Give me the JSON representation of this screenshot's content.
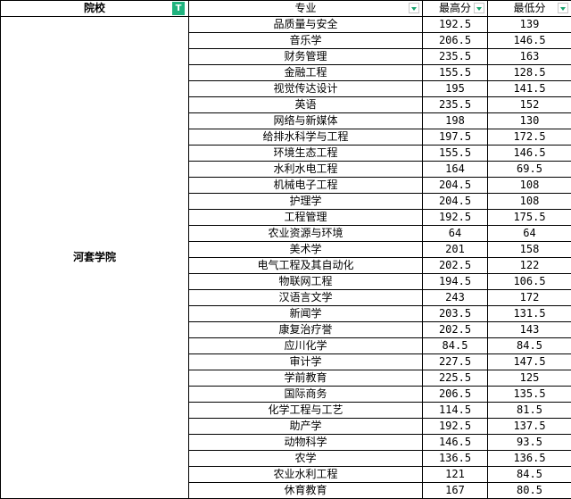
{
  "headers": {
    "school": "院校",
    "major": "专业",
    "max": "最高分",
    "min": "最低分"
  },
  "filter_active_glyph": "T",
  "accent_color": "#1fb37e",
  "school": "河套学院",
  "rows": [
    {
      "major": "品质量与安全",
      "max": "192.5",
      "min": "139"
    },
    {
      "major": "音乐学",
      "max": "206.5",
      "min": "146.5"
    },
    {
      "major": "财务管理",
      "max": "235.5",
      "min": "163"
    },
    {
      "major": "金融工程",
      "max": "155.5",
      "min": "128.5"
    },
    {
      "major": "视觉传达设计",
      "max": "195",
      "min": "141.5"
    },
    {
      "major": "英语",
      "max": "235.5",
      "min": "152"
    },
    {
      "major": "网络与新媒体",
      "max": "198",
      "min": "130"
    },
    {
      "major": "给排水科学与工程",
      "max": "197.5",
      "min": "172.5"
    },
    {
      "major": "环境生态工程",
      "max": "155.5",
      "min": "146.5"
    },
    {
      "major": "水利水电工程",
      "max": "164",
      "min": "69.5"
    },
    {
      "major": "机械电子工程",
      "max": "204.5",
      "min": "108"
    },
    {
      "major": "护理学",
      "max": "204.5",
      "min": "108"
    },
    {
      "major": "工程管理",
      "max": "192.5",
      "min": "175.5"
    },
    {
      "major": "农业资源与环境",
      "max": "64",
      "min": "64"
    },
    {
      "major": "美术学",
      "max": "201",
      "min": "158"
    },
    {
      "major": "电气工程及其自动化",
      "max": "202.5",
      "min": "122"
    },
    {
      "major": "物联网工程",
      "max": "194.5",
      "min": "106.5"
    },
    {
      "major": "汉语言文学",
      "max": "243",
      "min": "172"
    },
    {
      "major": "新闻学",
      "max": "203.5",
      "min": "131.5"
    },
    {
      "major": "康复治疗誉",
      "max": "202.5",
      "min": "143"
    },
    {
      "major": "应川化学",
      "max": "84.5",
      "min": "84.5"
    },
    {
      "major": "审计学",
      "max": "227.5",
      "min": "147.5"
    },
    {
      "major": "学前教育",
      "max": "225.5",
      "min": "125"
    },
    {
      "major": "国际商务",
      "max": "206.5",
      "min": "135.5"
    },
    {
      "major": "化学工程与工艺",
      "max": "114.5",
      "min": "81.5"
    },
    {
      "major": "助产学",
      "max": "192.5",
      "min": "137.5"
    },
    {
      "major": "动物科学",
      "max": "146.5",
      "min": "93.5"
    },
    {
      "major": "农学",
      "max": "136.5",
      "min": "136.5"
    },
    {
      "major": "农业水利工程",
      "max": "121",
      "min": "84.5"
    },
    {
      "major": "休育教育",
      "max": "167",
      "min": "80.5"
    }
  ]
}
